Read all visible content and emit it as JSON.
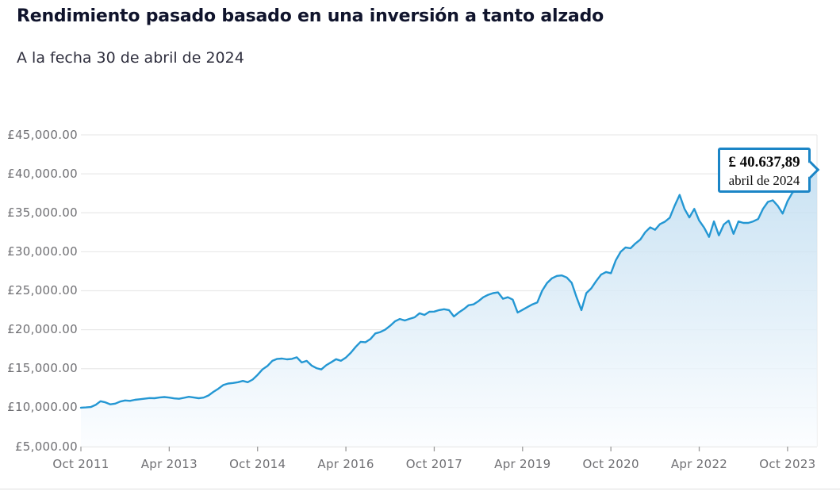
{
  "header": {
    "title": "Rendimiento pasado basado en una inversión a tanto alzado",
    "as_of": "A la fecha 30 de abril de 2024"
  },
  "tooltip": {
    "value": "£ 40.637,89",
    "date": "abril de 2024"
  },
  "chart_data": {
    "type": "area",
    "title": "Rendimiento pasado basado en una inversión a tanto alzado",
    "xlabel": "",
    "ylabel": "",
    "x_start": "Oct 2011",
    "x_end": "Apr 2024",
    "frequency": "monthly",
    "ylim": [
      5000,
      45000
    ],
    "grid": true,
    "legend": false,
    "y_ticks": [
      {
        "label": "£45,000.00",
        "value": 45000
      },
      {
        "label": "£40,000.00",
        "value": 40000
      },
      {
        "label": "£35,000.00",
        "value": 35000
      },
      {
        "label": "£30,000.00",
        "value": 30000
      },
      {
        "label": "£25,000.00",
        "value": 25000
      },
      {
        "label": "£20,000.00",
        "value": 20000
      },
      {
        "label": "£15,000.00",
        "value": 15000
      },
      {
        "label": "£10,000.00",
        "value": 10000
      },
      {
        "label": "£5,000.00",
        "value": 5000
      }
    ],
    "x_ticks": [
      {
        "label": "Oct 2011",
        "month_index": 0
      },
      {
        "label": "Apr 2013",
        "month_index": 18
      },
      {
        "label": "Oct 2014",
        "month_index": 36
      },
      {
        "label": "Apr 2016",
        "month_index": 54
      },
      {
        "label": "Oct 2017",
        "month_index": 72
      },
      {
        "label": "Apr 2019",
        "month_index": 90
      },
      {
        "label": "Oct 2020",
        "month_index": 108
      },
      {
        "label": "Apr 2022",
        "month_index": 126
      },
      {
        "label": "Oct 2023",
        "month_index": 144
      }
    ],
    "end_point": {
      "value": 40637.89,
      "value_label": "£ 40.637,89",
      "date_label": "abril de 2024"
    },
    "values": [
      10000,
      10030,
      10080,
      10350,
      10820,
      10680,
      10420,
      10520,
      10780,
      10920,
      10870,
      11010,
      11080,
      11150,
      11230,
      11210,
      11300,
      11360,
      11290,
      11190,
      11140,
      11260,
      11390,
      11300,
      11210,
      11290,
      11560,
      12020,
      12420,
      12900,
      13090,
      13160,
      13260,
      13430,
      13260,
      13600,
      14200,
      14900,
      15340,
      16000,
      16260,
      16300,
      16200,
      16260,
      16460,
      15800,
      16000,
      15400,
      15070,
      14900,
      15440,
      15820,
      16220,
      16010,
      16430,
      17050,
      17800,
      18450,
      18390,
      18800,
      19520,
      19700,
      20000,
      20500,
      21070,
      21380,
      21180,
      21400,
      21590,
      22110,
      21900,
      22300,
      22320,
      22520,
      22630,
      22520,
      21700,
      22210,
      22630,
      23140,
      23250,
      23660,
      24170,
      24480,
      24690,
      24790,
      23970,
      24170,
      23860,
      22200,
      22550,
      22900,
      23250,
      23500,
      25000,
      26000,
      26600,
      26900,
      26960,
      26700,
      26030,
      24170,
      22520,
      24690,
      25310,
      26240,
      27070,
      27400,
      27250,
      28900,
      30000,
      30560,
      30450,
      31070,
      31580,
      32510,
      33130,
      32820,
      33540,
      33850,
      34370,
      35920,
      37300,
      35500,
      34400,
      35500,
      34000,
      33100,
      31900,
      33900,
      32100,
      33500,
      34000,
      32300,
      33900,
      33700,
      33700,
      33900,
      34200,
      35500,
      36400,
      36600,
      35900,
      34900,
      36500,
      37600,
      37900,
      38600,
      39300,
      40000,
      40637.89
    ],
    "colors": {
      "line": "#2497d3",
      "area_top": "#b5d7ee",
      "area_bottom": "#fbfdff",
      "grid": "#e9e9e9",
      "baseline_grid": "#d9d9d9",
      "tick": "#9a9a9a",
      "axis_text": "#6f6f73",
      "tooltip_border": "#1b85c6",
      "title_text": "#10142c"
    }
  }
}
